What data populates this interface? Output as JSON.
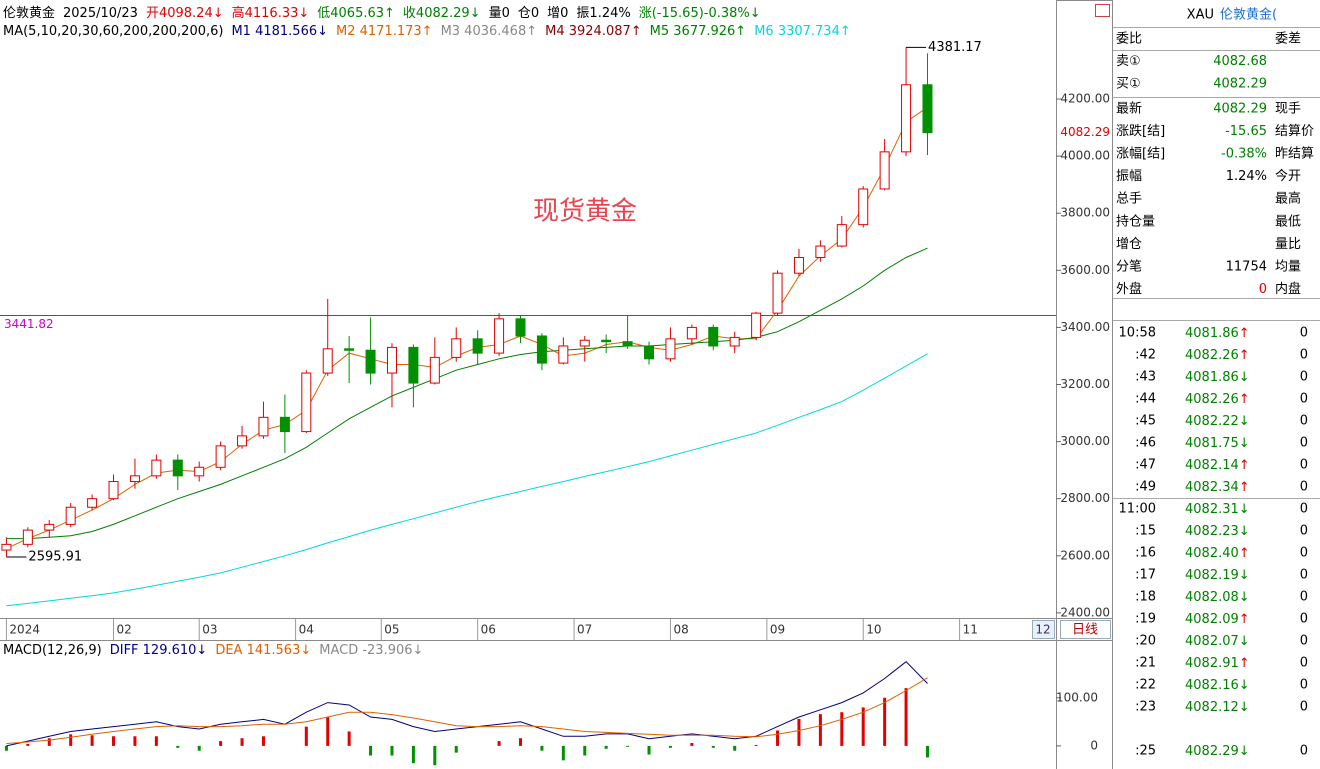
{
  "header": {
    "items": [
      {
        "text": "伦敦黄金",
        "color": "#000000"
      },
      {
        "text": "2025/10/23",
        "color": "#000000"
      },
      {
        "text": "开4098.24↓",
        "color": "#e00000"
      },
      {
        "text": "高4116.33↓",
        "color": "#e00000"
      },
      {
        "text": "低4065.63↑",
        "color": "#008000"
      },
      {
        "text": "收4082.29↓",
        "color": "#008000"
      },
      {
        "text": "量0",
        "color": "#000000"
      },
      {
        "text": "仓0",
        "color": "#000000"
      },
      {
        "text": "增0",
        "color": "#000000"
      },
      {
        "text": "振1.24%",
        "color": "#000000"
      },
      {
        "text": "涨(-15.65)-0.38%↓",
        "color": "#008000"
      }
    ]
  },
  "chart_data": [
    {
      "type": "candlestick",
      "title": "现货黄金",
      "period": "日线",
      "corner_tab": "12",
      "up_color": "#e00000",
      "down_color": "#009000",
      "legend": [
        {
          "text": "MA(5,10,20,30,60,200,200,200,6)",
          "color": "#000000"
        },
        {
          "text": "M1 4181.566↓",
          "color": "#000080"
        },
        {
          "text": "M2 4171.173↑",
          "color": "#e06000"
        },
        {
          "text": "M3 4036.468↑",
          "color": "#888888"
        },
        {
          "text": "M4 3924.087↑",
          "color": "#8b0000"
        },
        {
          "text": "M5 3677.926↑",
          "color": "#008000"
        },
        {
          "text": "M6 3307.734↑",
          "color": "#00d8e0"
        }
      ],
      "xlim": [
        -0.3,
        49
      ],
      "xticks": [
        {
          "value": 0,
          "label": "2024"
        },
        {
          "value": 5,
          "label": "02"
        },
        {
          "value": 9,
          "label": "03"
        },
        {
          "value": 13.5,
          "label": "04"
        },
        {
          "value": 17.5,
          "label": "05"
        },
        {
          "value": 22,
          "label": "06"
        },
        {
          "value": 26.5,
          "label": "07"
        },
        {
          "value": 31,
          "label": "08"
        },
        {
          "value": 35.5,
          "label": "09"
        },
        {
          "value": 40,
          "label": "10"
        },
        {
          "value": 44.5,
          "label": "11"
        }
      ],
      "ylim": [
        2382,
        4547
      ],
      "yticks": [
        {
          "value": 2400,
          "label": "2400.00"
        },
        {
          "value": 2600,
          "label": "2600.00"
        },
        {
          "value": 2800,
          "label": "2800.00"
        },
        {
          "value": 3000,
          "label": "3000.00"
        },
        {
          "value": 3200,
          "label": "3200.00"
        },
        {
          "value": 3400,
          "label": "3400.00"
        },
        {
          "value": 3600,
          "label": "3600.00"
        },
        {
          "value": 3800,
          "label": "3800.00"
        },
        {
          "value": 4000,
          "label": "4000.00"
        },
        {
          "value": 4200,
          "label": "4200.00"
        }
      ],
      "hline": 3441.82,
      "hline_color": "#cc00cc",
      "candles": [
        [
          2620,
          2665,
          2595.91,
          2640
        ],
        [
          2640,
          2700,
          2630,
          2690
        ],
        [
          2690,
          2725,
          2665,
          2710
        ],
        [
          2710,
          2785,
          2700,
          2770
        ],
        [
          2770,
          2815,
          2760,
          2800
        ],
        [
          2800,
          2885,
          2795,
          2860
        ],
        [
          2860,
          2940,
          2835,
          2880
        ],
        [
          2880,
          2955,
          2870,
          2935
        ],
        [
          2935,
          2955,
          2830,
          2880
        ],
        [
          2880,
          2930,
          2860,
          2910
        ],
        [
          2910,
          3000,
          2900,
          2985
        ],
        [
          2985,
          3055,
          2975,
          3020
        ],
        [
          3020,
          3140,
          3010,
          3085
        ],
        [
          3085,
          3165,
          2960,
          3035
        ],
        [
          3035,
          3250,
          3030,
          3240
        ],
        [
          3240,
          3500,
          3230,
          3325
        ],
        [
          3325,
          3370,
          3205,
          3320
        ],
        [
          3320,
          3435,
          3200,
          3240
        ],
        [
          3240,
          3345,
          3120,
          3330
        ],
        [
          3330,
          3340,
          3120,
          3205
        ],
        [
          3205,
          3365,
          3200,
          3295
        ],
        [
          3295,
          3400,
          3280,
          3360
        ],
        [
          3360,
          3390,
          3270,
          3310
        ],
        [
          3310,
          3450,
          3300,
          3430
        ],
        [
          3430,
          3440,
          3345,
          3370
        ],
        [
          3370,
          3380,
          3250,
          3275
        ],
        [
          3275,
          3365,
          3270,
          3335
        ],
        [
          3335,
          3370,
          3280,
          3355
        ],
        [
          3355,
          3375,
          3310,
          3350
        ],
        [
          3350,
          3440,
          3325,
          3335
        ],
        [
          3335,
          3350,
          3270,
          3290
        ],
        [
          3290,
          3400,
          3280,
          3360
        ],
        [
          3360,
          3410,
          3340,
          3400
        ],
        [
          3400,
          3410,
          3320,
          3335
        ],
        [
          3335,
          3385,
          3310,
          3365
        ],
        [
          3365,
          3455,
          3355,
          3450
        ],
        [
          3450,
          3600,
          3440,
          3590
        ],
        [
          3590,
          3675,
          3580,
          3645
        ],
        [
          3645,
          3705,
          3630,
          3685
        ],
        [
          3685,
          3790,
          3680,
          3760
        ],
        [
          3760,
          3895,
          3750,
          3885
        ],
        [
          3885,
          4060,
          3880,
          4015
        ],
        [
          4015,
          4381.17,
          4000,
          4250
        ],
        [
          4250,
          4360,
          4004,
          4082.29
        ]
      ],
      "lines": [
        {
          "color": "#e06000",
          "values": [
            2625,
            2660,
            2690,
            2725,
            2760,
            2800,
            2850,
            2890,
            2900,
            2895,
            2930,
            2990,
            3040,
            3060,
            3110,
            3250,
            3310,
            3290,
            3270,
            3270,
            3260,
            3300,
            3330,
            3340,
            3370,
            3340,
            3300,
            3310,
            3340,
            3350,
            3330,
            3320,
            3340,
            3370,
            3360,
            3360,
            3460,
            3580,
            3650,
            3710,
            3820,
            3960,
            4120,
            4171.173
          ]
        },
        {
          "color": "#008000",
          "values": [
            2660,
            2660,
            2665,
            2670,
            2685,
            2710,
            2740,
            2770,
            2800,
            2825,
            2850,
            2880,
            2910,
            2940,
            2980,
            3030,
            3080,
            3120,
            3160,
            3190,
            3220,
            3250,
            3270,
            3290,
            3305,
            3315,
            3320,
            3325,
            3330,
            3335,
            3335,
            3340,
            3345,
            3350,
            3355,
            3365,
            3385,
            3420,
            3460,
            3500,
            3545,
            3600,
            3645,
            3677.926
          ]
        },
        {
          "color": "#00d8e0",
          "values": [
            2425,
            2433,
            2442,
            2451,
            2460,
            2470,
            2483,
            2497,
            2511,
            2525,
            2540,
            2560,
            2580,
            2600,
            2622,
            2645,
            2667,
            2690,
            2710,
            2730,
            2750,
            2770,
            2790,
            2808,
            2825,
            2843,
            2860,
            2878,
            2895,
            2912,
            2930,
            2950,
            2970,
            2990,
            3010,
            3030,
            3057,
            3085,
            3112,
            3140,
            3180,
            3222,
            3265,
            3307.734
          ]
        }
      ]
    },
    {
      "type": "macd",
      "legend": [
        {
          "text": "MACD(12,26,9)",
          "color": "#000000"
        },
        {
          "text": "DIFF 129.610↓",
          "color": "#000080"
        },
        {
          "text": "DEA 141.563↓",
          "color": "#e06000"
        },
        {
          "text": "MACD -23.906↓",
          "color": "#888888"
        }
      ],
      "ylim": [
        -48,
        220
      ],
      "yticks": [
        0,
        {
          "value": 100,
          "label": "100.00"
        }
      ],
      "series": [
        {
          "color": "#000080",
          "values": [
            0,
            10,
            20,
            30,
            35,
            40,
            45,
            50,
            40,
            35,
            45,
            50,
            55,
            45,
            70,
            90,
            85,
            60,
            55,
            40,
            30,
            35,
            40,
            45,
            50,
            35,
            20,
            20,
            25,
            25,
            15,
            20,
            25,
            20,
            15,
            20,
            40,
            60,
            75,
            90,
            110,
            140,
            175,
            129.61
          ]
        },
        {
          "color": "#e06000",
          "values": [
            5,
            8,
            12,
            18,
            24,
            30,
            35,
            40,
            42,
            40,
            40,
            42,
            45,
            45,
            50,
            60,
            70,
            70,
            65,
            58,
            50,
            42,
            40,
            40,
            42,
            40,
            35,
            30,
            28,
            26,
            24,
            22,
            22,
            22,
            20,
            19,
            24,
            32,
            42,
            55,
            70,
            90,
            115,
            141.563
          ]
        }
      ],
      "hist": [
        -10,
        4,
        16,
        24,
        22,
        20,
        20,
        20,
        -4,
        -10,
        10,
        16,
        20,
        0,
        40,
        60,
        30,
        -20,
        -20,
        -36,
        -40,
        -14,
        0,
        10,
        16,
        -10,
        -30,
        -20,
        -6,
        -2,
        -18,
        -4,
        6,
        -4,
        -10,
        2,
        32,
        56,
        66,
        70,
        80,
        100,
        120,
        -23.906
      ]
    }
  ],
  "quote": {
    "symbol": "XAU",
    "name": "伦敦黄金(",
    "rows": [
      {
        "label": "委比",
        "label2": "委差"
      },
      {
        "label": "卖①",
        "value": "4082.68",
        "color": "#008000"
      },
      {
        "label": "买①",
        "value": "4082.29",
        "color": "#008000"
      },
      {
        "label": "最新",
        "value": "4082.29",
        "color": "#008000",
        "label2": "现手"
      },
      {
        "label": "涨跌[结]",
        "value": "-15.65",
        "color": "#008000",
        "label2": "结算价"
      },
      {
        "label": "涨幅[结]",
        "value": "-0.38%",
        "color": "#008000",
        "label2": "昨结算"
      },
      {
        "label": "振幅",
        "value": "1.24%",
        "color": "#000000",
        "label2": "今开"
      },
      {
        "label": "总手",
        "label2": "最高"
      },
      {
        "label": "持仓量",
        "label2": "最低"
      },
      {
        "label": "增仓",
        "label2": "量比"
      },
      {
        "label": "分笔",
        "value": "11754",
        "color": "#000000",
        "label2": "均量"
      },
      {
        "label": "外盘",
        "value": "0",
        "color": "#e00000",
        "label2": "内盘"
      }
    ]
  },
  "ticks": [
    {
      "time": "10:58",
      "price": "4081.86",
      "dir": "↑",
      "dir_color": "#e00000",
      "vol": 0
    },
    {
      "time": ":42",
      "price": "4082.26",
      "dir": "↑",
      "dir_color": "#e00000",
      "vol": 0
    },
    {
      "time": ":43",
      "price": "4081.86",
      "dir": "↓",
      "dir_color": "#008000",
      "vol": 0
    },
    {
      "time": ":44",
      "price": "4082.26",
      "dir": "↑",
      "dir_color": "#e00000",
      "vol": 0
    },
    {
      "time": ":45",
      "price": "4082.22",
      "dir": "↓",
      "dir_color": "#008000",
      "vol": 0
    },
    {
      "time": ":46",
      "price": "4081.75",
      "dir": "↓",
      "dir_color": "#008000",
      "vol": 0
    },
    {
      "time": ":47",
      "price": "4082.14",
      "dir": "↑",
      "dir_color": "#e00000",
      "vol": 0
    },
    {
      "time": ":49",
      "price": "4082.34",
      "dir": "↑",
      "dir_color": "#e00000",
      "vol": 0
    },
    {
      "time": "11:00",
      "price": "4082.31",
      "dir": "↓",
      "dir_color": "#008000",
      "vol": 0
    },
    {
      "time": ":15",
      "price": "4082.23",
      "dir": "↓",
      "dir_color": "#008000",
      "vol": 0
    },
    {
      "time": ":16",
      "price": "4082.40",
      "dir": "↑",
      "dir_color": "#e00000",
      "vol": 0
    },
    {
      "time": ":17",
      "price": "4082.19",
      "dir": "↓",
      "dir_color": "#008000",
      "vol": 0
    },
    {
      "time": ":18",
      "price": "4082.08",
      "dir": "↓",
      "dir_color": "#008000",
      "vol": 0
    },
    {
      "time": ":19",
      "price": "4082.09",
      "dir": "↑",
      "dir_color": "#e00000",
      "vol": 0
    },
    {
      "time": ":20",
      "price": "4082.07",
      "dir": "↓",
      "dir_color": "#008000",
      "vol": 0
    },
    {
      "time": ":21",
      "price": "4082.91",
      "dir": "↑",
      "dir_color": "#e00000",
      "vol": 0
    },
    {
      "time": ":22",
      "price": "4082.16",
      "dir": "↓",
      "dir_color": "#008000",
      "vol": 0
    },
    {
      "time": ":23",
      "price": "4082.12",
      "dir": "↓",
      "dir_color": "#008000",
      "vol": 0
    },
    {
      "time": ":25",
      "price": "4082.29",
      "dir": "↓",
      "dir_color": "#008000",
      "vol": 0
    }
  ]
}
